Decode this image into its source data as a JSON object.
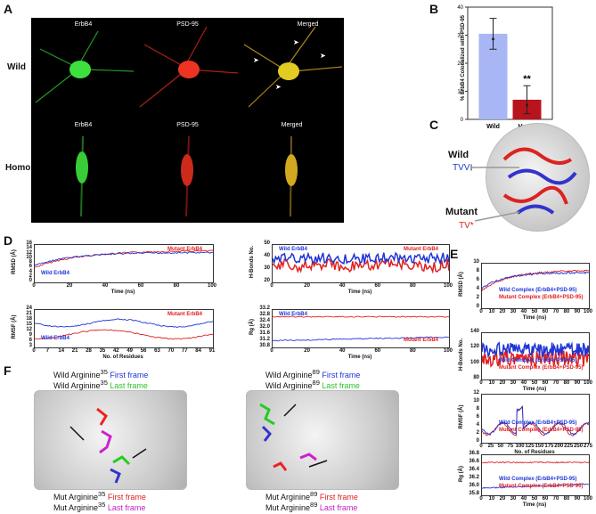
{
  "panels": {
    "A": "A",
    "B": "B",
    "C": "C",
    "D": "D",
    "E": "E",
    "F": "F"
  },
  "panelA": {
    "rows": [
      "Wild",
      "Homo"
    ],
    "channels": [
      "ErbB4",
      "PSD-95",
      "Merged"
    ],
    "colors": {
      "green": "#37d037",
      "red": "#e02a1a",
      "merged": "#d9b21a"
    }
  },
  "panelB": {
    "chart_data": {
      "type": "bar",
      "categories": [
        "Wild",
        "Homo"
      ],
      "values": [
        30.5,
        7
      ],
      "errors": [
        5.5,
        5
      ],
      "ylim": [
        0,
        40
      ],
      "yticks": [
        "0",
        "10",
        "20",
        "30",
        "40"
      ],
      "ylabel": "% ErbB4 Colocalized with PSD-95",
      "colors": [
        "#a8b6f5",
        "#b8141e"
      ],
      "annotation": "**"
    }
  },
  "panelC": {
    "wild_label": "Wild",
    "wild_seq": "TVV",
    "mutant_label": "Mutant",
    "mutant_seq": "TV*"
  },
  "panelD": {
    "plots": [
      {
        "ylabel": "RMSD (Å)",
        "xlabel": "Time (ns)",
        "xticks": [
          "0",
          "20",
          "40",
          "60",
          "80",
          "100"
        ],
        "yticks": [
          "16",
          "14",
          "12",
          "10",
          "8",
          "6",
          "4",
          "2",
          "0"
        ],
        "legend_a": "Wild ErbB4",
        "legend_b": "Mutant ErbB4"
      },
      {
        "ylabel": "H-Bonds No.",
        "xlabel": "Time (ns)",
        "xticks": [
          "0",
          "20",
          "40",
          "60",
          "80",
          "100"
        ],
        "yticks": [
          "50",
          "40",
          "30",
          "20"
        ],
        "legend_a": "Wild ErbB4",
        "legend_b": "Mutant ErbB4"
      },
      {
        "ylabel": "RMSF (Å)",
        "xlabel": "No. of Residues",
        "xticks": [
          "0",
          "7",
          "14",
          "21",
          "28",
          "35",
          "42",
          "49",
          "56",
          "63",
          "70",
          "77",
          "84",
          "91"
        ],
        "yticks": [
          "24",
          "21",
          "18",
          "15",
          "12",
          "9",
          "6",
          "3"
        ],
        "legend_a": "Wild ErbB4",
        "legend_b": "Mutant ErbB4"
      },
      {
        "ylabel": "Rg (Å)",
        "xlabel": "Time (ns)",
        "xticks": [
          "0",
          "20",
          "40",
          "60",
          "80",
          "100"
        ],
        "yticks": [
          "33.2",
          "32.8",
          "32.4",
          "32.0",
          "31.6",
          "31.2",
          "30.8"
        ],
        "legend_a": "Wild ErbB4",
        "legend_b": "Mutant ErbB4"
      }
    ]
  },
  "panelE": {
    "plots": [
      {
        "ylabel": "RMSD (Å)",
        "xlabel": "Time (ns)",
        "xticks": [
          "0",
          "10",
          "20",
          "30",
          "40",
          "50",
          "60",
          "70",
          "80",
          "90",
          "100"
        ],
        "yticks": [
          "10",
          "8",
          "6",
          "4",
          "2",
          "0"
        ],
        "legend_a": "Wild Complex (ErbB4+PSD-95)",
        "legend_b": "Mutant Complex (ErbB4+PSD-95)"
      },
      {
        "ylabel": "H-Bonds No.",
        "xlabel": "Time (ns)",
        "xticks": [
          "0",
          "10",
          "20",
          "30",
          "40",
          "50",
          "60",
          "70",
          "80",
          "90",
          "100"
        ],
        "yticks": [
          "140",
          "120",
          "100",
          "80"
        ],
        "legend_a": "Wild Complex (ErbB4+PSD-95)",
        "legend_b": "Mutant Complex (ErbB4+PSD-95)"
      },
      {
        "ylabel": "RMSF (Å)",
        "xlabel": "No. of Residues",
        "xticks": [
          "0",
          "25",
          "50",
          "75",
          "100",
          "125",
          "150",
          "175",
          "200",
          "225",
          "250",
          "275"
        ],
        "yticks": [
          "12",
          "10",
          "8",
          "6",
          "4",
          "2",
          "0"
        ],
        "legend_a": "Wild Complex (ErbB4+PSD-95)",
        "legend_b": "Mutant Complex (ErbB4+PSD-95)"
      },
      {
        "ylabel": "Rg (Å)",
        "xlabel": "Time (ns)",
        "xticks": [
          "0",
          "10",
          "20",
          "30",
          "40",
          "50",
          "60",
          "70",
          "80",
          "90",
          "100"
        ],
        "yticks": [
          "36.8",
          "36.6",
          "36.4",
          "36.2",
          "36.0",
          "35.8"
        ],
        "legend_a": "Wild Complex (ErbB4+PSD-95)",
        "legend_b": "Mutant Complex (ErbB4+PSD-95)"
      }
    ]
  },
  "panelF": {
    "left": {
      "wild_name": "Wild Arginine",
      "wild_sup": "35",
      "mut_name": "Mut Arginine",
      "mut_sup": "35"
    },
    "right": {
      "wild_name": "Wild Arginine",
      "wild_sup": "89",
      "mut_name": "Mut Arginine",
      "mut_sup": "89"
    },
    "first": "First frame",
    "last": "Last frame"
  }
}
